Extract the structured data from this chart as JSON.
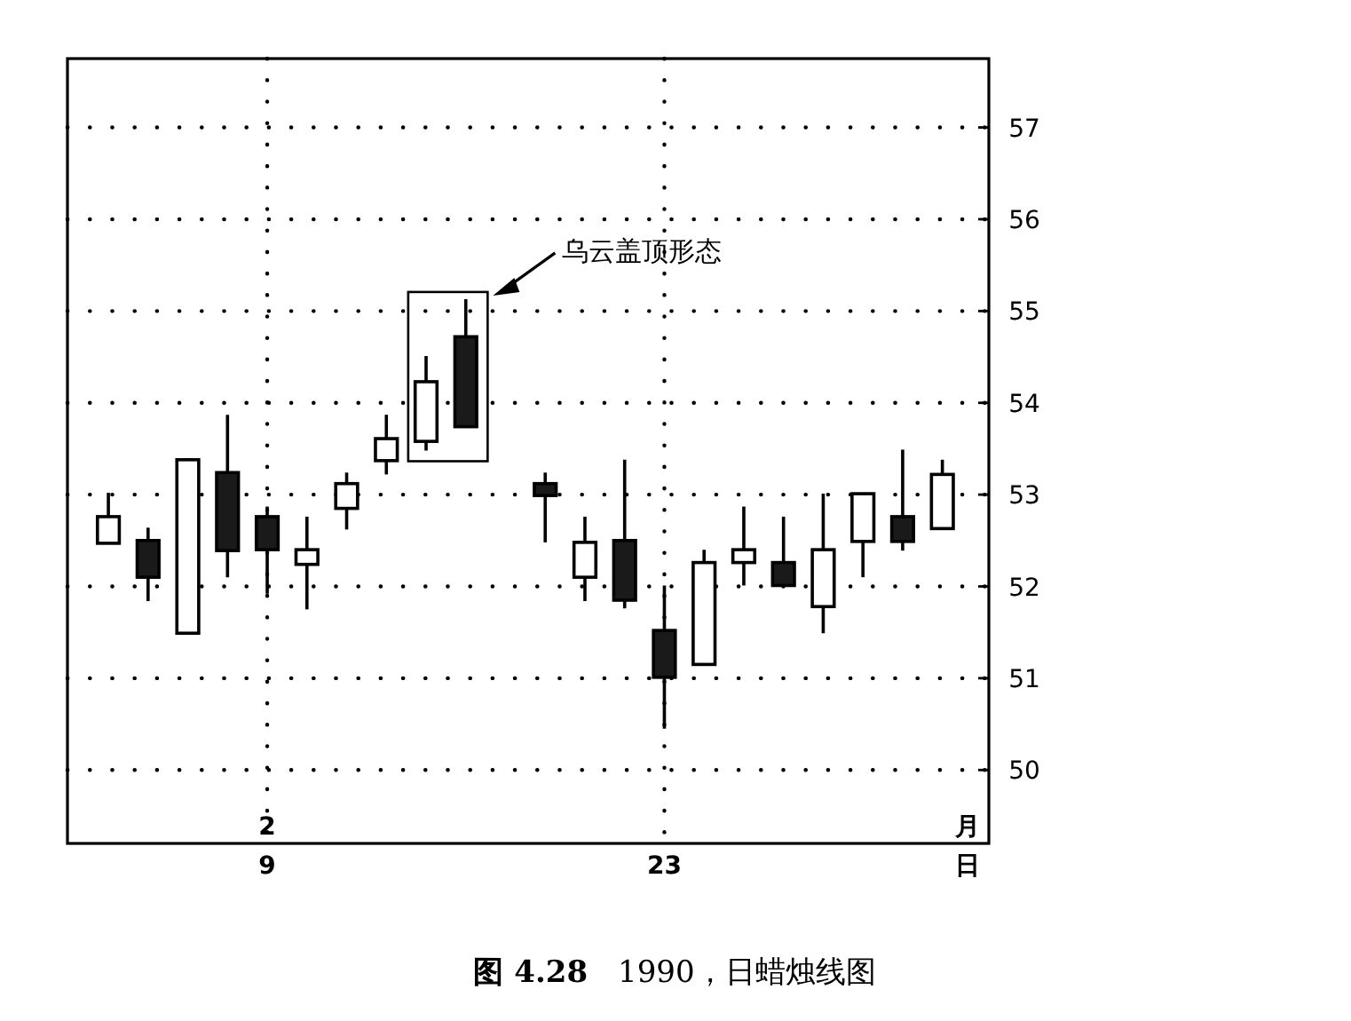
{
  "chart_data": {
    "type": "candlestick",
    "title": "**图 4.28**　1990，日蜡烛线图",
    "categories": [
      null,
      null,
      null,
      null,
      "9",
      null,
      null,
      null,
      null,
      null,
      null,
      null,
      null,
      null,
      "23",
      null,
      null,
      null,
      null,
      null,
      null,
      null
    ],
    "ohlc": [
      [
        52.47,
        53.02,
        52.47,
        52.76
      ],
      [
        52.5,
        52.64,
        51.84,
        52.1
      ],
      [
        51.49,
        53.38,
        51.49,
        53.38
      ],
      [
        53.24,
        53.87,
        52.1,
        52.39
      ],
      [
        52.76,
        52.87,
        51.92,
        52.4
      ],
      [
        52.24,
        52.76,
        51.75,
        52.4
      ],
      [
        52.85,
        53.24,
        52.62,
        53.12
      ],
      [
        53.37,
        53.87,
        53.22,
        53.61
      ],
      [
        53.58,
        54.51,
        53.48,
        54.23
      ],
      [
        54.72,
        55.13,
        53.74,
        53.74
      ],
      null,
      [
        53.12,
        53.24,
        52.48,
        52.99
      ],
      [
        52.1,
        52.76,
        51.84,
        52.48
      ],
      [
        52.5,
        53.38,
        51.76,
        51.85
      ],
      [
        51.52,
        52.01,
        50.45,
        51.01
      ],
      [
        51.15,
        52.4,
        51.15,
        52.26
      ],
      [
        52.26,
        52.87,
        52.01,
        52.4
      ],
      [
        52.26,
        52.76,
        52.01,
        52.01
      ],
      [
        51.78,
        53.01,
        51.49,
        52.4
      ],
      [
        52.49,
        53.01,
        52.1,
        53.01
      ],
      [
        52.76,
        53.49,
        52.39,
        52.49
      ],
      [
        52.63,
        53.38,
        52.63,
        53.22
      ]
    ],
    "ylim": [
      49.2,
      57.75
    ],
    "yticks": [
      50,
      51,
      52,
      53,
      54,
      55,
      56,
      57
    ],
    "xlabel": "日",
    "grid": true,
    "annotations": [
      "2",
      "月",
      "乌云盖顶形态"
    ]
  }
}
